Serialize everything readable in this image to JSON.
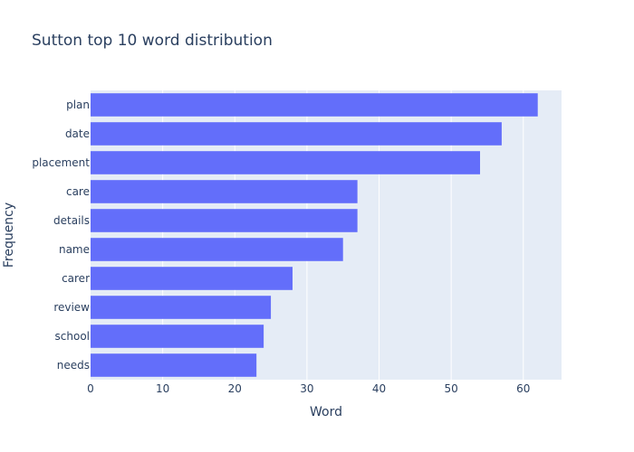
{
  "chart_data": {
    "type": "bar",
    "orientation": "horizontal",
    "title": "Sutton top 10 word distribution",
    "xlabel": "Word",
    "ylabel": "Frequency",
    "categories": [
      "plan",
      "date",
      "placement",
      "care",
      "details",
      "name",
      "carer",
      "review",
      "school",
      "needs"
    ],
    "values": [
      62,
      57,
      54,
      37,
      37,
      35,
      28,
      25,
      24,
      23
    ],
    "xlim": [
      0,
      65.3
    ],
    "xticks": [
      0,
      10,
      20,
      30,
      40,
      50,
      60
    ],
    "grid": true,
    "colors": {
      "bar": "#636efa",
      "plot_background": "#e5ecf6",
      "grid": "#ffffff",
      "text": "#2a3f5f"
    }
  }
}
